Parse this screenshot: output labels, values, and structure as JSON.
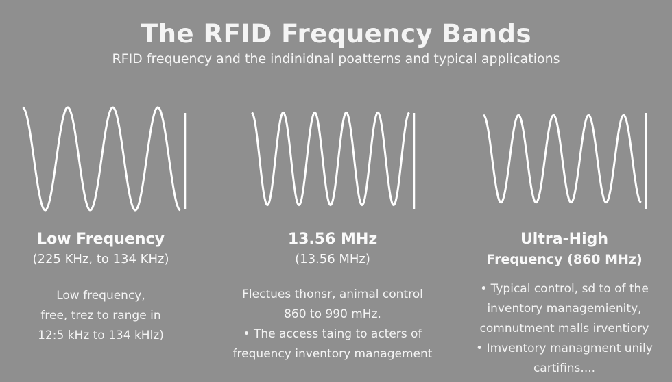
{
  "title": "The RFID Frequency Bands",
  "subtitle": "RFID frequency and the indinidnal poatterns and typical applications",
  "bands": [
    {
      "heading": "Low Frequency",
      "range": "(225 KHz, to 134 KHz)",
      "lines": [
        "Low frequency,",
        "free, trez to range in",
        "12:5 kHz to 134 kHlz)"
      ],
      "wave_icon": "sine-wave-icon"
    },
    {
      "heading": "13.56 MHz",
      "range": "(13.56 MHz)",
      "lines": [
        "Flectues thonsr, animal control",
        "860 to 990 mHz.",
        "• The access taing to acters of",
        "frequency inventory management"
      ],
      "wave_icon": "sine-wave-icon"
    },
    {
      "heading": "Ultra-High",
      "range": "Frequency (860 MHz)",
      "lines": [
        "•  Typical control, sd to of the",
        "inventory managemienity,",
        "comnutment malls irventiory",
        "•  Imventory managment unily",
        "cartifins...."
      ],
      "wave_icon": "sine-wave-icon"
    }
  ],
  "colors": {
    "background": "#8f8f8f",
    "text": "#ffffff"
  }
}
